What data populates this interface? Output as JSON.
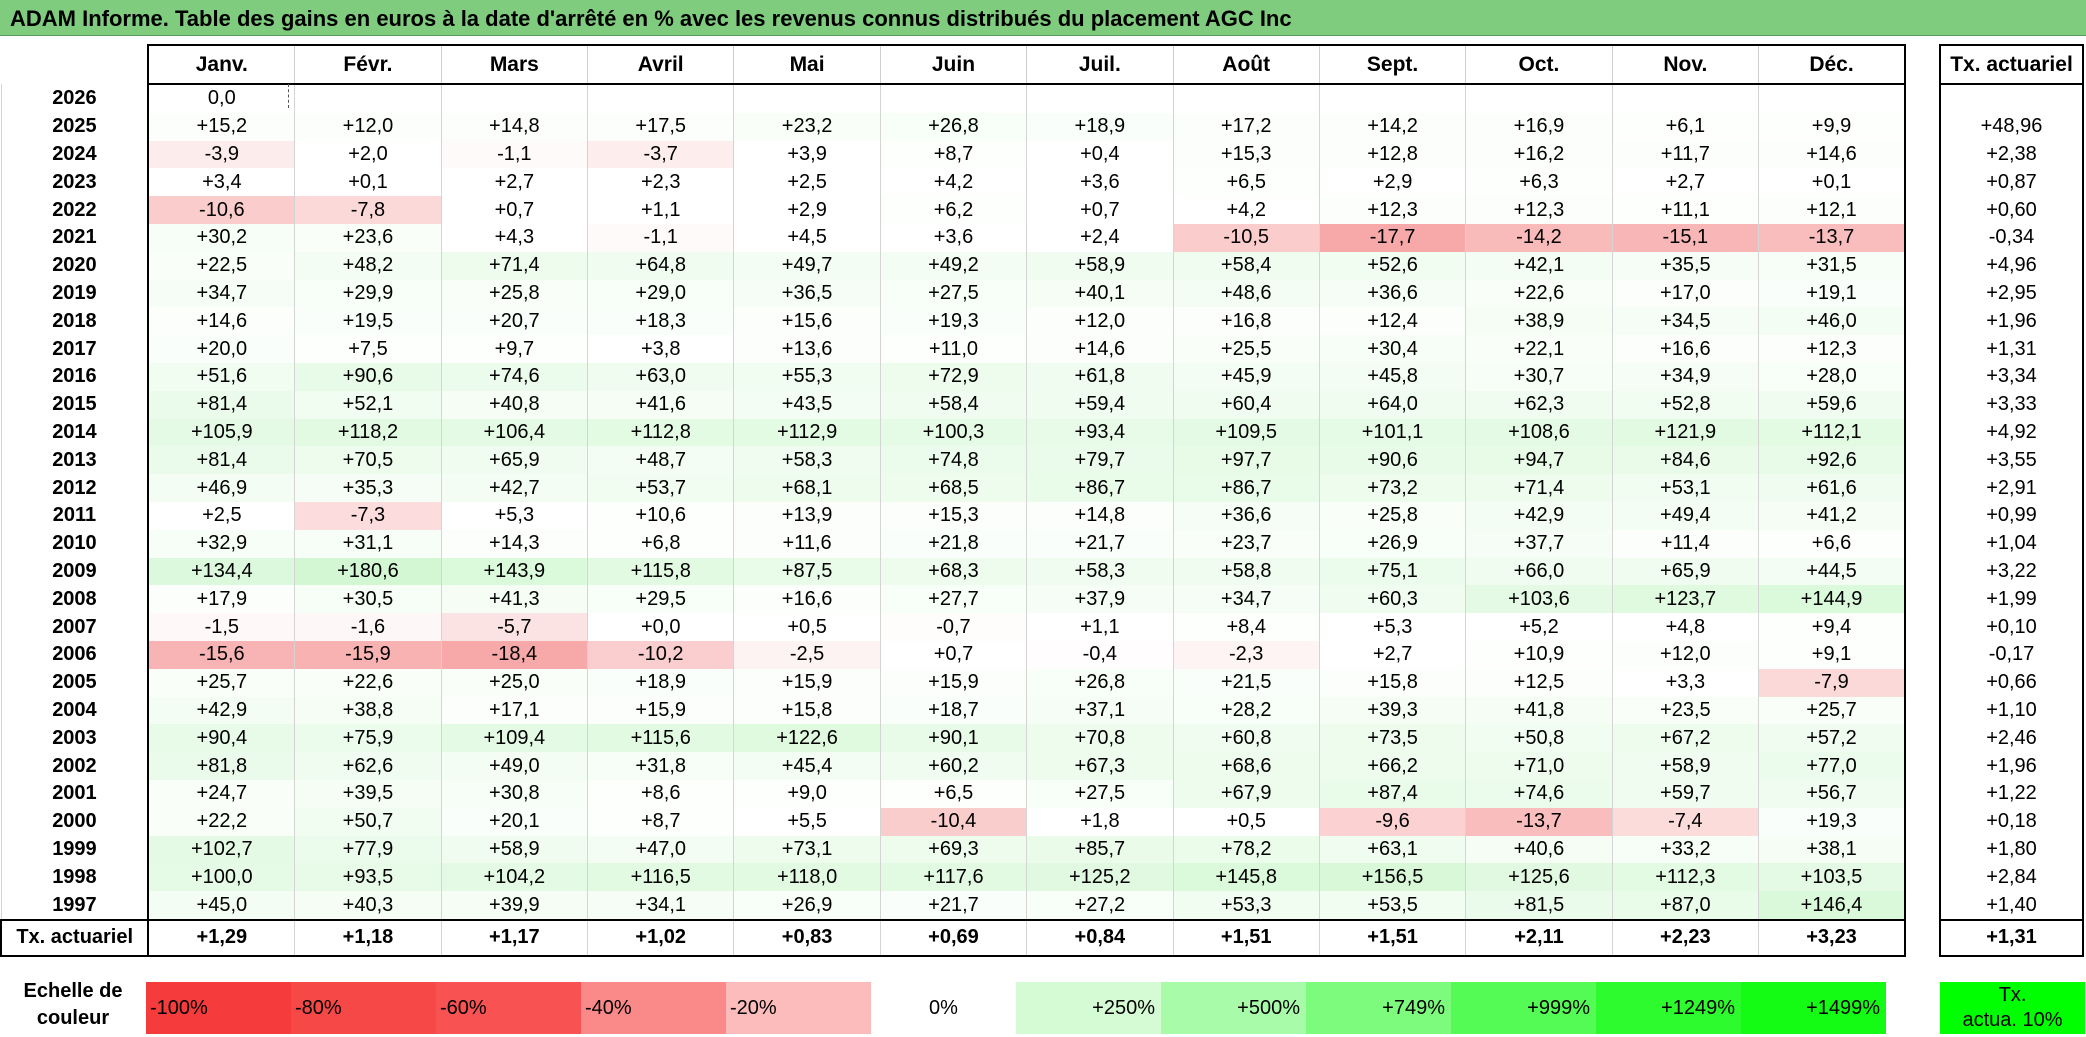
{
  "title": "ADAM Informe. Table des gains en euros à la date d'arrêté en % avec les revenus connus distribués du placement AGC Inc",
  "months": [
    "Janv.",
    "Févr.",
    "Mars",
    "Avril",
    "Mai",
    "Juin",
    "Juil.",
    "Août",
    "Sept.",
    "Oct.",
    "Nov.",
    "Déc."
  ],
  "annual_header": "Tx. actuariel",
  "rows": [
    {
      "year": "2026",
      "cells": [
        "0,0",
        "",
        "",
        "",
        "",
        "",
        "",
        "",
        "",
        "",
        "",
        ""
      ],
      "annual": ""
    },
    {
      "year": "2025",
      "cells": [
        "+15,2",
        "+12,0",
        "+14,8",
        "+17,5",
        "+23,2",
        "+26,8",
        "+18,9",
        "+17,2",
        "+14,2",
        "+16,9",
        "+6,1",
        "+9,9"
      ],
      "annual": "+48,96"
    },
    {
      "year": "2024",
      "cells": [
        "-3,9",
        "+2,0",
        "-1,1",
        "-3,7",
        "+3,9",
        "+8,7",
        "+0,4",
        "+15,3",
        "+12,8",
        "+16,2",
        "+11,7",
        "+14,6"
      ],
      "annual": "+2,38"
    },
    {
      "year": "2023",
      "cells": [
        "+3,4",
        "+0,1",
        "+2,7",
        "+2,3",
        "+2,5",
        "+4,2",
        "+3,6",
        "+6,5",
        "+2,9",
        "+6,3",
        "+2,7",
        "+0,1"
      ],
      "annual": "+0,87"
    },
    {
      "year": "2022",
      "cells": [
        "-10,6",
        "-7,8",
        "+0,7",
        "+1,1",
        "+2,9",
        "+6,2",
        "+0,7",
        "+4,2",
        "+12,3",
        "+12,3",
        "+11,1",
        "+12,1"
      ],
      "annual": "+0,60"
    },
    {
      "year": "2021",
      "cells": [
        "+30,2",
        "+23,6",
        "+4,3",
        "-1,1",
        "+4,5",
        "+3,6",
        "+2,4",
        "-10,5",
        "-17,7",
        "-14,2",
        "-15,1",
        "-13,7"
      ],
      "annual": "-0,34"
    },
    {
      "year": "2020",
      "cells": [
        "+22,5",
        "+48,2",
        "+71,4",
        "+64,8",
        "+49,7",
        "+49,2",
        "+58,9",
        "+58,4",
        "+52,6",
        "+42,1",
        "+35,5",
        "+31,5"
      ],
      "annual": "+4,96"
    },
    {
      "year": "2019",
      "cells": [
        "+34,7",
        "+29,9",
        "+25,8",
        "+29,0",
        "+36,5",
        "+27,5",
        "+40,1",
        "+48,6",
        "+36,6",
        "+22,6",
        "+17,0",
        "+19,1"
      ],
      "annual": "+2,95"
    },
    {
      "year": "2018",
      "cells": [
        "+14,6",
        "+19,5",
        "+20,7",
        "+18,3",
        "+15,6",
        "+19,3",
        "+12,0",
        "+16,8",
        "+12,4",
        "+38,9",
        "+34,5",
        "+46,0"
      ],
      "annual": "+1,96"
    },
    {
      "year": "2017",
      "cells": [
        "+20,0",
        "+7,5",
        "+9,7",
        "+3,8",
        "+13,6",
        "+11,0",
        "+14,6",
        "+25,5",
        "+30,4",
        "+22,1",
        "+16,6",
        "+12,3"
      ],
      "annual": "+1,31"
    },
    {
      "year": "2016",
      "cells": [
        "+51,6",
        "+90,6",
        "+74,6",
        "+63,0",
        "+55,3",
        "+72,9",
        "+61,8",
        "+45,9",
        "+45,8",
        "+30,7",
        "+34,9",
        "+28,0"
      ],
      "annual": "+3,34"
    },
    {
      "year": "2015",
      "cells": [
        "+81,4",
        "+52,1",
        "+40,8",
        "+41,6",
        "+43,5",
        "+58,4",
        "+59,4",
        "+60,4",
        "+64,0",
        "+62,3",
        "+52,8",
        "+59,6"
      ],
      "annual": "+3,33"
    },
    {
      "year": "2014",
      "cells": [
        "+105,9",
        "+118,2",
        "+106,4",
        "+112,8",
        "+112,9",
        "+100,3",
        "+93,4",
        "+109,5",
        "+101,1",
        "+108,6",
        "+121,9",
        "+112,1"
      ],
      "annual": "+4,92"
    },
    {
      "year": "2013",
      "cells": [
        "+81,4",
        "+70,5",
        "+65,9",
        "+48,7",
        "+58,3",
        "+74,8",
        "+79,7",
        "+97,7",
        "+90,6",
        "+94,7",
        "+84,6",
        "+92,6"
      ],
      "annual": "+3,55"
    },
    {
      "year": "2012",
      "cells": [
        "+46,9",
        "+35,3",
        "+42,7",
        "+53,7",
        "+68,1",
        "+68,5",
        "+86,7",
        "+86,7",
        "+73,2",
        "+71,4",
        "+53,1",
        "+61,6"
      ],
      "annual": "+2,91"
    },
    {
      "year": "2011",
      "cells": [
        "+2,5",
        "-7,3",
        "+5,3",
        "+10,6",
        "+13,9",
        "+15,3",
        "+14,8",
        "+36,6",
        "+25,8",
        "+42,9",
        "+49,4",
        "+41,2"
      ],
      "annual": "+0,99"
    },
    {
      "year": "2010",
      "cells": [
        "+32,9",
        "+31,1",
        "+14,3",
        "+6,8",
        "+11,6",
        "+21,8",
        "+21,7",
        "+23,7",
        "+26,9",
        "+37,7",
        "+11,4",
        "+6,6"
      ],
      "annual": "+1,04"
    },
    {
      "year": "2009",
      "cells": [
        "+134,4",
        "+180,6",
        "+143,9",
        "+115,8",
        "+87,5",
        "+68,3",
        "+58,3",
        "+58,8",
        "+75,1",
        "+66,0",
        "+65,9",
        "+44,5"
      ],
      "annual": "+3,22"
    },
    {
      "year": "2008",
      "cells": [
        "+17,9",
        "+30,5",
        "+41,3",
        "+29,5",
        "+16,6",
        "+27,7",
        "+37,9",
        "+34,7",
        "+60,3",
        "+103,6",
        "+123,7",
        "+144,9"
      ],
      "annual": "+1,99"
    },
    {
      "year": "2007",
      "cells": [
        "-1,5",
        "-1,6",
        "-5,7",
        "+0,0",
        "+0,5",
        "-0,7",
        "+1,1",
        "+8,4",
        "+5,3",
        "+5,2",
        "+4,8",
        "+9,4"
      ],
      "annual": "+0,10"
    },
    {
      "year": "2006",
      "cells": [
        "-15,6",
        "-15,9",
        "-18,4",
        "-10,2",
        "-2,5",
        "+0,7",
        "-0,4",
        "-2,3",
        "+2,7",
        "+10,9",
        "+12,0",
        "+9,1"
      ],
      "annual": "-0,17"
    },
    {
      "year": "2005",
      "cells": [
        "+25,7",
        "+22,6",
        "+25,0",
        "+18,9",
        "+15,9",
        "+15,9",
        "+26,8",
        "+21,5",
        "+15,8",
        "+12,5",
        "+3,3",
        "-7,9"
      ],
      "annual": "+0,66"
    },
    {
      "year": "2004",
      "cells": [
        "+42,9",
        "+38,8",
        "+17,1",
        "+15,9",
        "+15,8",
        "+18,7",
        "+37,1",
        "+28,2",
        "+39,3",
        "+41,8",
        "+23,5",
        "+25,7"
      ],
      "annual": "+1,10"
    },
    {
      "year": "2003",
      "cells": [
        "+90,4",
        "+75,9",
        "+109,4",
        "+115,6",
        "+122,6",
        "+90,1",
        "+70,8",
        "+60,8",
        "+73,5",
        "+50,8",
        "+67,2",
        "+57,2"
      ],
      "annual": "+2,46"
    },
    {
      "year": "2002",
      "cells": [
        "+81,8",
        "+62,6",
        "+49,0",
        "+31,8",
        "+45,4",
        "+60,2",
        "+67,3",
        "+68,6",
        "+66,2",
        "+71,0",
        "+58,9",
        "+77,0"
      ],
      "annual": "+1,96"
    },
    {
      "year": "2001",
      "cells": [
        "+24,7",
        "+39,5",
        "+30,8",
        "+8,6",
        "+9,0",
        "+6,5",
        "+27,5",
        "+67,9",
        "+87,4",
        "+74,6",
        "+59,7",
        "+56,7"
      ],
      "annual": "+1,22"
    },
    {
      "year": "2000",
      "cells": [
        "+22,2",
        "+50,7",
        "+20,1",
        "+8,7",
        "+5,5",
        "-10,4",
        "+1,8",
        "+0,5",
        "-9,6",
        "-13,7",
        "-7,4",
        "+19,3"
      ],
      "annual": "+0,18"
    },
    {
      "year": "1999",
      "cells": [
        "+102,7",
        "+77,9",
        "+58,9",
        "+47,0",
        "+73,1",
        "+69,3",
        "+85,7",
        "+78,2",
        "+63,1",
        "+40,6",
        "+33,2",
        "+38,1"
      ],
      "annual": "+1,80"
    },
    {
      "year": "1998",
      "cells": [
        "+100,0",
        "+93,5",
        "+104,2",
        "+116,5",
        "+118,0",
        "+117,6",
        "+125,2",
        "+145,8",
        "+156,5",
        "+125,6",
        "+112,3",
        "+103,5"
      ],
      "annual": "+2,84"
    },
    {
      "year": "1997",
      "cells": [
        "+45,0",
        "+40,3",
        "+39,9",
        "+34,1",
        "+26,9",
        "+21,7",
        "+27,2",
        "+53,3",
        "+53,5",
        "+81,5",
        "+87,0",
        "+146,4"
      ],
      "annual": "+1,40"
    }
  ],
  "footer": {
    "label": "Tx. actuariel",
    "cells": [
      "+1,29",
      "+1,18",
      "+1,17",
      "+1,02",
      "+0,83",
      "+0,69",
      "+0,84",
      "+1,51",
      "+1,51",
      "+2,11",
      "+2,23",
      "+3,23"
    ],
    "annual": "+1,31"
  },
  "scale": {
    "label_line1": "Echelle de",
    "label_line2": "couleur",
    "items": [
      {
        "text": "-100%",
        "color": "#f53b3b",
        "align": "left"
      },
      {
        "text": "-80%",
        "color": "#f74848",
        "align": "left"
      },
      {
        "text": "-60%",
        "color": "#f85252",
        "align": "left"
      },
      {
        "text": "-40%",
        "color": "#fa8a8a",
        "align": "left"
      },
      {
        "text": "-20%",
        "color": "#fdbcbc",
        "align": "left"
      },
      {
        "text": "0%",
        "color": "#ffffff",
        "align": "center"
      },
      {
        "text": "+250%",
        "color": "#d5fbd5",
        "align": "right"
      },
      {
        "text": "+500%",
        "color": "#a8fba8",
        "align": "right"
      },
      {
        "text": "+749%",
        "color": "#7dfb7d",
        "align": "right"
      },
      {
        "text": "+999%",
        "color": "#55fb55",
        "align": "right"
      },
      {
        "text": "+1249%",
        "color": "#2dfb2d",
        "align": "right"
      },
      {
        "text": "+1499%",
        "color": "#14fb14",
        "align": "right"
      }
    ],
    "side_line1": "Tx.",
    "side_line2": "actua. 10%",
    "side_color": "#00ff00"
  },
  "colors": {
    "title_bg": "#7fcc7f",
    "positive_max": "#c8f5c8",
    "negative_max": "#f7a3a3"
  }
}
